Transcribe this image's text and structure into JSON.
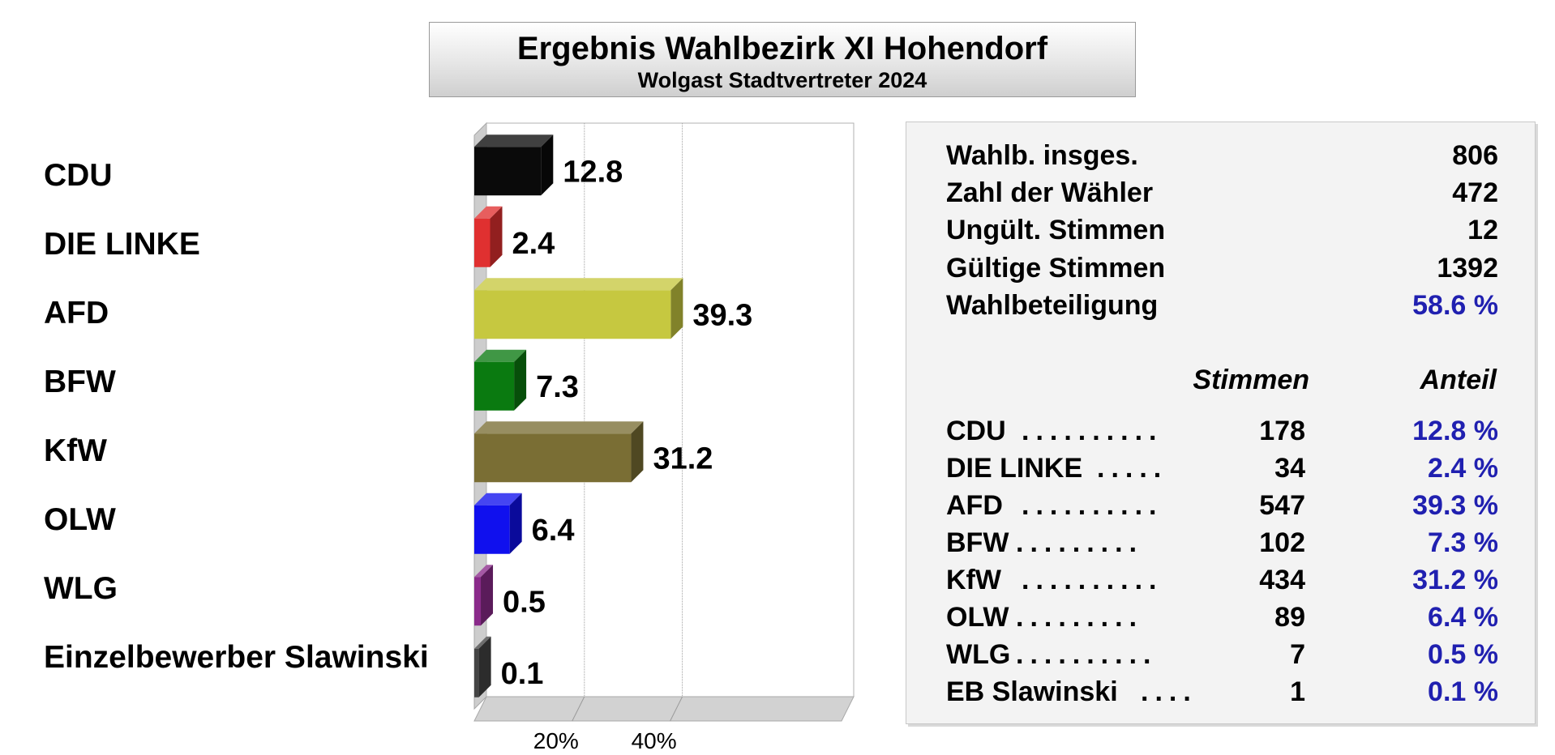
{
  "title": "Ergebnis Wahlbezirk XI Hohendorf",
  "subtitle": "Wolgast Stadtvertreter 2024",
  "chart_data": {
    "type": "bar",
    "orientation": "horizontal",
    "categories": [
      "CDU",
      "DIE LINKE",
      "AFD",
      "BFW",
      "KfW",
      "OLW",
      "WLG",
      "Einzelbewerber Slawinski"
    ],
    "values": [
      12.8,
      2.4,
      39.3,
      7.3,
      31.2,
      6.4,
      0.5,
      0.1
    ],
    "value_labels": [
      "12.8",
      "2.4",
      "39.3",
      "7.3",
      "31.2",
      "6.4",
      "0.5",
      "0.1"
    ],
    "colors": [
      "#0a0a0a",
      "#e03030",
      "#c6c840",
      "#0a7a10",
      "#7a6e34",
      "#1010ee",
      "#8a2a8a",
      "#444444"
    ],
    "xlim": [
      0,
      75
    ],
    "xticks": [
      20,
      40
    ],
    "xtick_labels": [
      "20%",
      "40%"
    ],
    "grid": true,
    "bar_style": "3d"
  },
  "stats": [
    {
      "label": "Wahlb. insges.",
      "value": "806"
    },
    {
      "label": "Zahl der Wähler",
      "value": "472"
    },
    {
      "label": "Ungült. Stimmen",
      "value": "12"
    },
    {
      "label": "Gültige Stimmen",
      "value": "1392"
    },
    {
      "label": "Wahlbeteiligung",
      "value": "58.6 %"
    }
  ],
  "table_headers": {
    "votes": "Stimmen",
    "share": "Anteil"
  },
  "results": [
    {
      "party": "CDU",
      "votes": "178",
      "share": "12.8 %"
    },
    {
      "party": "DIE LINKE",
      "votes": "34",
      "share": "2.4 %"
    },
    {
      "party": "AFD",
      "votes": "547",
      "share": "39.3 %"
    },
    {
      "party": "BFW",
      "votes": "102",
      "share": "7.3 %"
    },
    {
      "party": "KfW",
      "votes": "434",
      "share": "31.2 %"
    },
    {
      "party": "OLW",
      "votes": "89",
      "share": "6.4 %"
    },
    {
      "party": "WLG",
      "votes": "7",
      "share": "0.5 %"
    },
    {
      "party": "EB Slawinski",
      "votes": "1",
      "share": "0.1 %"
    }
  ],
  "colors": {
    "accent": "#2020b0"
  }
}
